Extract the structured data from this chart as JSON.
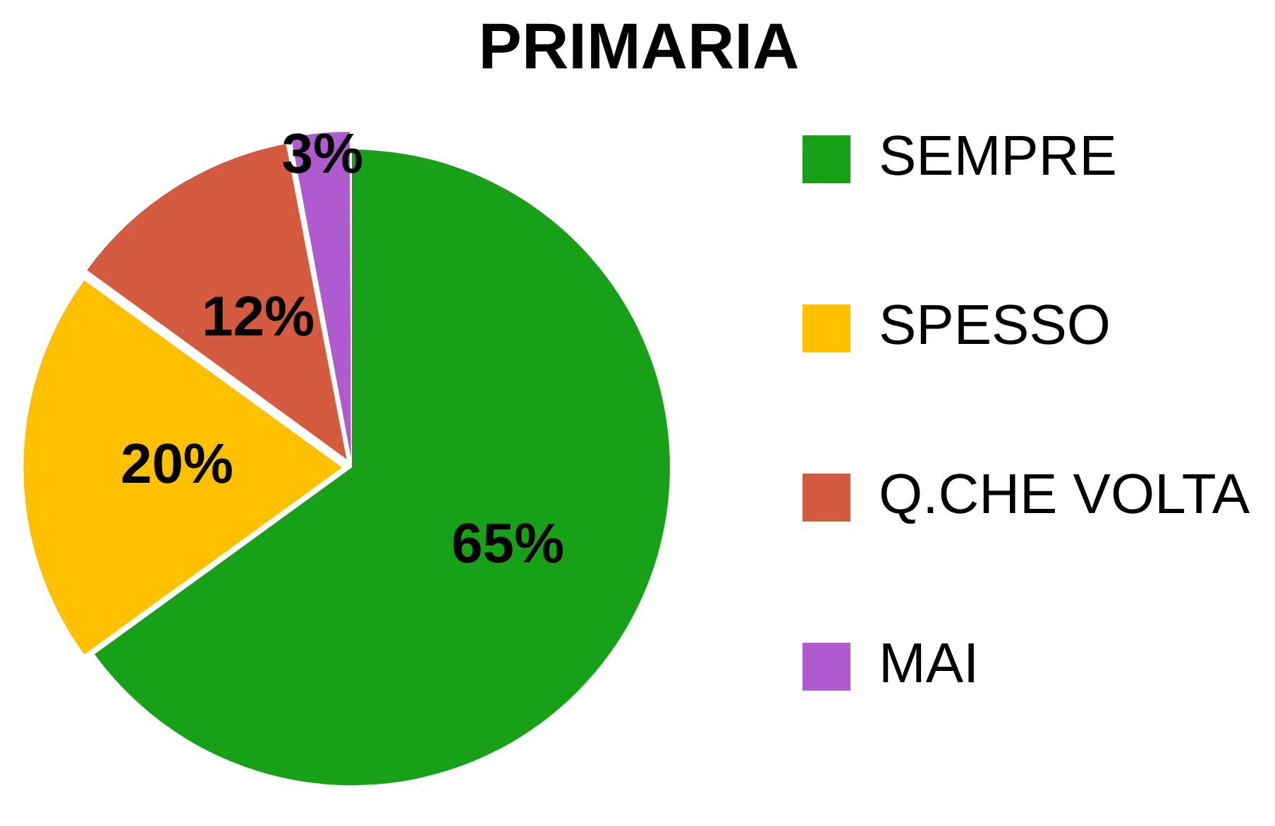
{
  "chart_data": {
    "type": "pie",
    "title": "PRIMARIA",
    "categories": [
      "SEMPRE",
      "SPESSO",
      "Q.CHE VOLTA",
      "MAI"
    ],
    "values": [
      65,
      20,
      12,
      3
    ],
    "colors": [
      "#18a018",
      "#ffc000",
      "#d45a40",
      "#b05ad0"
    ],
    "value_labels": [
      "65%",
      "20%",
      "12%",
      "3%"
    ],
    "legend": "right"
  }
}
